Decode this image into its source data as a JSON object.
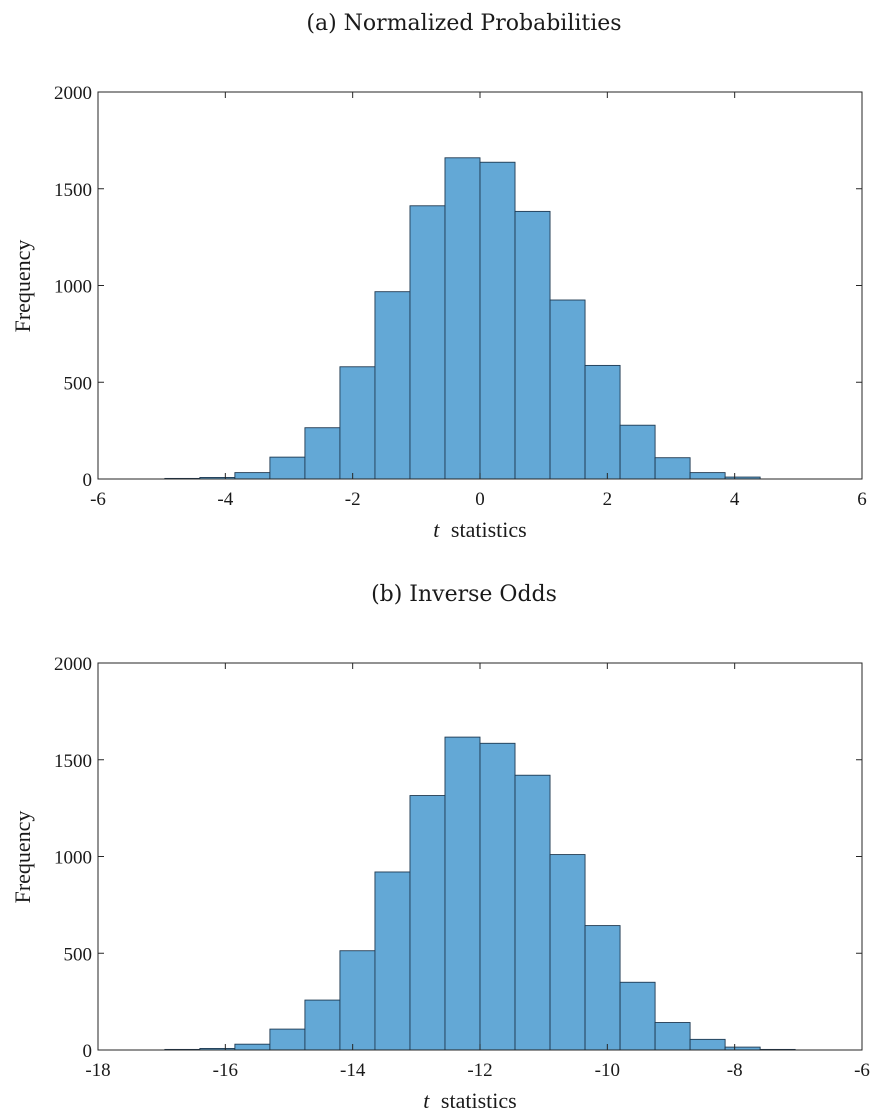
{
  "chart_data": [
    {
      "type": "bar",
      "title": "(a) Normalized Probabilities",
      "xlabel_var": "t",
      "xlabel_text": "statistics",
      "ylabel": "Frequency",
      "xlim": [
        -6,
        6
      ],
      "ylim": [
        0,
        2000
      ],
      "xticks": [
        -6,
        -4,
        -2,
        0,
        2,
        4,
        6
      ],
      "yticks": [
        0,
        500,
        1000,
        1500,
        2000
      ],
      "bar_color": "#63a8d6",
      "edge_color": "#1f3a52",
      "bins": [
        {
          "x0": -4.95,
          "x1": -4.4,
          "value": 3
        },
        {
          "x0": -4.4,
          "x1": -3.85,
          "value": 8
        },
        {
          "x0": -3.85,
          "x1": -3.3,
          "value": 33
        },
        {
          "x0": -3.3,
          "x1": -2.75,
          "value": 113
        },
        {
          "x0": -2.75,
          "x1": -2.2,
          "value": 265
        },
        {
          "x0": -2.2,
          "x1": -1.65,
          "value": 580
        },
        {
          "x0": -1.65,
          "x1": -1.1,
          "value": 968
        },
        {
          "x0": -1.1,
          "x1": -0.55,
          "value": 1412
        },
        {
          "x0": -0.55,
          "x1": 0.0,
          "value": 1660
        },
        {
          "x0": 0.0,
          "x1": 0.55,
          "value": 1637
        },
        {
          "x0": 0.55,
          "x1": 1.1,
          "value": 1383
        },
        {
          "x0": 1.1,
          "x1": 1.65,
          "value": 925
        },
        {
          "x0": 1.65,
          "x1": 2.2,
          "value": 587
        },
        {
          "x0": 2.2,
          "x1": 2.75,
          "value": 278
        },
        {
          "x0": 2.75,
          "x1": 3.3,
          "value": 110
        },
        {
          "x0": 3.3,
          "x1": 3.85,
          "value": 33
        },
        {
          "x0": 3.85,
          "x1": 4.4,
          "value": 10
        }
      ]
    },
    {
      "type": "bar",
      "title": "(b) Inverse Odds",
      "xlabel_var": "t",
      "xlabel_text": "statistics",
      "ylabel": "Frequency",
      "xlim": [
        -18,
        -6
      ],
      "ylim": [
        0,
        2000
      ],
      "xticks": [
        -18,
        -16,
        -14,
        -12,
        -10,
        -8,
        -6
      ],
      "yticks": [
        0,
        500,
        1000,
        1500,
        2000
      ],
      "bar_color": "#63a8d6",
      "edge_color": "#1f3a52",
      "bins": [
        {
          "x0": -16.95,
          "x1": -16.4,
          "value": 3
        },
        {
          "x0": -16.4,
          "x1": -15.85,
          "value": 8
        },
        {
          "x0": -15.85,
          "x1": -15.3,
          "value": 30
        },
        {
          "x0": -15.3,
          "x1": -14.75,
          "value": 108
        },
        {
          "x0": -14.75,
          "x1": -14.2,
          "value": 258
        },
        {
          "x0": -14.2,
          "x1": -13.65,
          "value": 513
        },
        {
          "x0": -13.65,
          "x1": -13.1,
          "value": 920
        },
        {
          "x0": -13.1,
          "x1": -12.55,
          "value": 1315
        },
        {
          "x0": -12.55,
          "x1": -12.0,
          "value": 1617
        },
        {
          "x0": -12.0,
          "x1": -11.45,
          "value": 1585
        },
        {
          "x0": -11.45,
          "x1": -10.9,
          "value": 1420
        },
        {
          "x0": -10.9,
          "x1": -10.35,
          "value": 1010
        },
        {
          "x0": -10.35,
          "x1": -9.8,
          "value": 643
        },
        {
          "x0": -9.8,
          "x1": -9.25,
          "value": 350
        },
        {
          "x0": -9.25,
          "x1": -8.7,
          "value": 142
        },
        {
          "x0": -8.7,
          "x1": -8.15,
          "value": 55
        },
        {
          "x0": -8.15,
          "x1": -7.6,
          "value": 15
        },
        {
          "x0": -7.6,
          "x1": -7.05,
          "value": 3
        }
      ]
    }
  ]
}
